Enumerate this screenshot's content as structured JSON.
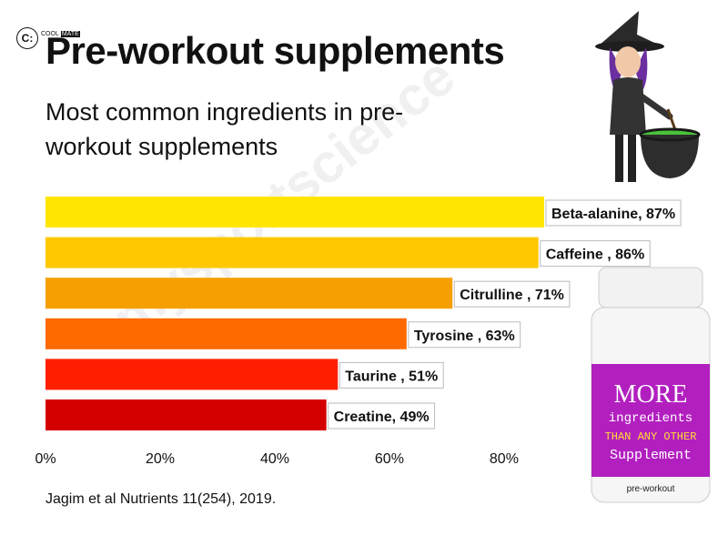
{
  "logo": {
    "glyph": "C:",
    "word_left": "COOL",
    "word_right": "MATE"
  },
  "chart_data": {
    "type": "bar",
    "orientation": "horizontal",
    "title": "Pre-workout supplements",
    "subtitle": "Most common ingredients in pre-workout supplements",
    "categories": [
      "Beta-alanine",
      "Caffeine",
      "Citrulline",
      "Tyrosine",
      "Taurine",
      "Creatine"
    ],
    "values": [
      87,
      86,
      71,
      63,
      51,
      49
    ],
    "data_labels": [
      "Beta-alanine, 87%",
      "Caffeine , 86%",
      "Citrulline , 71%",
      "Tyrosine , 63%",
      "Taurine , 51%",
      "Creatine, 49%"
    ],
    "bar_colors": [
      "#ffe600",
      "#ffc800",
      "#f5a000",
      "#ff6a00",
      "#ff1f00",
      "#d40000"
    ],
    "xlim": [
      0,
      87
    ],
    "x_ticks": [
      0,
      20,
      40,
      60,
      80
    ],
    "x_tick_labels": [
      "0%",
      "20%",
      "40%",
      "60%",
      "80%"
    ],
    "grid": false,
    "source": "Jagim et al Nutrients 11(254), 2019."
  },
  "watermark": "mysportscience",
  "bottle": {
    "line1": "MORE",
    "line2": "ingredients",
    "line3": "THAN ANY OTHER",
    "line4": "Supplement",
    "small": "pre-workout"
  }
}
